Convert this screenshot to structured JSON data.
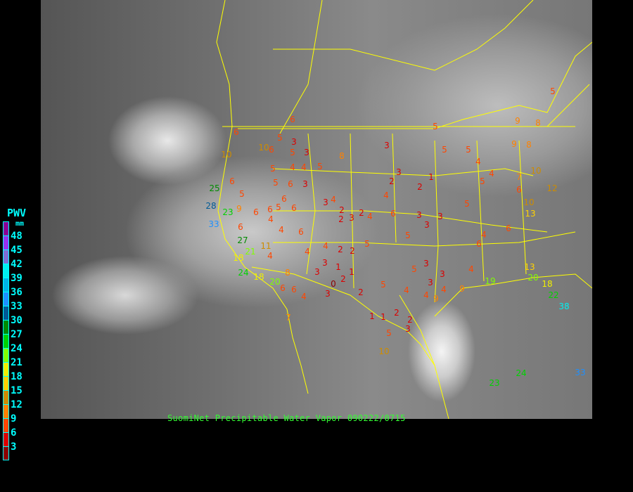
{
  "caption": "SuomiNet Precipitable Water Vapor 090222/0715",
  "legend": {
    "title": "PWV",
    "unit": "mm",
    "labels": [
      "48",
      "45",
      "42",
      "39",
      "36",
      "33",
      "30",
      "27",
      "24",
      "21",
      "18",
      "15",
      "12",
      "9",
      "6",
      "3"
    ],
    "colors": [
      "#8c0096",
      "#9632f0",
      "#7d6ed2",
      "#00f0f0",
      "#00b4e6",
      "#1e90ff",
      "#005a96",
      "#008c00",
      "#00d200",
      "#80ff00",
      "#f0f000",
      "#ffd200",
      "#cd8c00",
      "#ff8200",
      "#ff4600",
      "#dc0000",
      "#8c0000"
    ]
  },
  "map": {
    "background": "satellite-infrared",
    "boundary_color": "#ffff00"
  },
  "stations": [
    6,
    3,
    3,
    5,
    6,
    5,
    6,
    10,
    10,
    6,
    5,
    25,
    28,
    23,
    33,
    9,
    6,
    6,
    5,
    6,
    6,
    6,
    3,
    5,
    8,
    4,
    4,
    5,
    5,
    3,
    4,
    2,
    2,
    3,
    2,
    3,
    3,
    2,
    2,
    1,
    5,
    5,
    5,
    4,
    4,
    5,
    5,
    3,
    3,
    3,
    6,
    4,
    4,
    5,
    5,
    2,
    2,
    4,
    4,
    3,
    3,
    1,
    2,
    0,
    1,
    2,
    5,
    4,
    4,
    4,
    3,
    5,
    3,
    3,
    4,
    6,
    4,
    6,
    13,
    20,
    18,
    22,
    38,
    19,
    9,
    9,
    3,
    5,
    10,
    2,
    1,
    1,
    2,
    8,
    6,
    6,
    4,
    3,
    6,
    4,
    4,
    27,
    21,
    4,
    20,
    18,
    24,
    18,
    7,
    23,
    24,
    33,
    5,
    9,
    8,
    8,
    9,
    10,
    6,
    10,
    13,
    7,
    12,
    6,
    11
  ]
}
